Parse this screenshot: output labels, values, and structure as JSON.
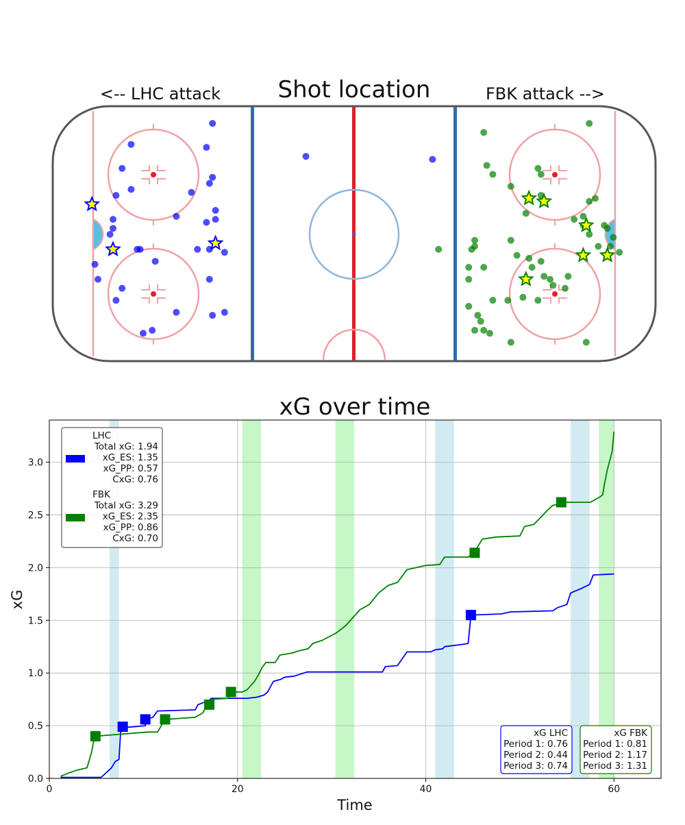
{
  "colors": {
    "lhc": "#0000ff",
    "fbk": "#008000",
    "pp_lhc_band": "#add8e6",
    "pp_fbk_band": "#90ee90",
    "goal_star_fill": "#ffff00",
    "rink_red": "#e0202a",
    "rink_blue": "#2a6fb0",
    "crease": "#5bc0de"
  },
  "shot_map": {
    "title": "Shot location",
    "left_label": "<-- LHC attack",
    "right_label": "FBK attack -->",
    "coordinate_system": "rink feet, x -100..100, y -42.5..42.5",
    "lhc_shots": [
      [
        -47,
        37
      ],
      [
        -74,
        30
      ],
      [
        -49,
        29
      ],
      [
        -77,
        22
      ],
      [
        -48,
        17
      ],
      [
        -54,
        14
      ],
      [
        -74,
        15
      ],
      [
        -59,
        6
      ],
      [
        -80,
        5
      ],
      [
        -49,
        4
      ],
      [
        -81,
        0
      ],
      [
        -71,
        -5
      ],
      [
        -72,
        -5
      ],
      [
        -48,
        -5
      ],
      [
        -52,
        -5
      ],
      [
        -86,
        -10
      ],
      [
        -66,
        -9
      ],
      [
        -85,
        -15
      ],
      [
        -77,
        -18
      ],
      [
        -43,
        -6
      ],
      [
        -79,
        -22
      ],
      [
        -59,
        -26
      ],
      [
        -67,
        -32
      ],
      [
        -43,
        -26
      ],
      [
        -47,
        -27
      ],
      [
        -70,
        -33
      ],
      [
        -48,
        -15
      ],
      [
        -46,
        5
      ],
      [
        -46,
        8
      ],
      [
        -79,
        13
      ],
      [
        -80,
        2
      ],
      [
        -47,
        19
      ],
      [
        -16,
        26
      ],
      [
        26,
        25
      ]
    ],
    "lhc_goals": [
      [
        -87,
        10
      ],
      [
        -80,
        -5
      ],
      [
        -46,
        -3
      ]
    ],
    "fbk_shots": [
      [
        28,
        -5
      ],
      [
        43,
        34
      ],
      [
        44,
        23
      ],
      [
        46,
        20
      ],
      [
        52,
        16
      ],
      [
        62,
        20
      ],
      [
        62,
        13
      ],
      [
        78,
        37
      ],
      [
        58,
        -8
      ],
      [
        80,
        12
      ],
      [
        78,
        11
      ],
      [
        76,
        6
      ],
      [
        76,
        3
      ],
      [
        83,
        3
      ],
      [
        84,
        2
      ],
      [
        85,
        -4
      ],
      [
        81,
        -4
      ],
      [
        39,
        -5
      ],
      [
        40,
        -2
      ],
      [
        40,
        -4
      ],
      [
        38,
        -11
      ],
      [
        38,
        -15
      ],
      [
        43,
        -11
      ],
      [
        59,
        -11
      ],
      [
        63,
        -14
      ],
      [
        65,
        -15
      ],
      [
        71,
        -14
      ],
      [
        70,
        -18
      ],
      [
        56,
        -21
      ],
      [
        61,
        -22
      ],
      [
        51,
        -22
      ],
      [
        62,
        -9
      ],
      [
        46,
        -22
      ],
      [
        38,
        -24
      ],
      [
        41,
        -27
      ],
      [
        42,
        -29
      ],
      [
        43,
        -32
      ],
      [
        45,
        -33
      ],
      [
        40,
        -32
      ],
      [
        52,
        -36
      ],
      [
        77,
        -36
      ],
      [
        57,
        7
      ],
      [
        73,
        5
      ],
      [
        88,
        -6
      ],
      [
        86,
        -1
      ],
      [
        52,
        -2
      ],
      [
        54,
        -7
      ],
      [
        66,
        -17
      ],
      [
        61,
        22
      ],
      [
        78,
        0
      ]
    ],
    "fbk_goals": [
      [
        58,
        12
      ],
      [
        63,
        11
      ],
      [
        77,
        3
      ],
      [
        76,
        -7
      ],
      [
        84,
        -7
      ],
      [
        57,
        -15
      ]
    ]
  },
  "chart_data": {
    "type": "line",
    "title": "xG over time",
    "xlabel": "Time",
    "ylabel": "xG",
    "xlim": [
      0,
      65
    ],
    "ylim": [
      0,
      3.4
    ],
    "xticks": [
      0,
      20,
      40,
      60
    ],
    "yticks": [
      0.0,
      0.5,
      1.0,
      1.5,
      2.0,
      2.5,
      3.0
    ],
    "grid": true,
    "legend_position": "top-left",
    "power_play_bands": [
      {
        "team": "LHC",
        "range": [
          6.4,
          7.4
        ]
      },
      {
        "team": "FBK",
        "range": [
          20.5,
          22.5
        ]
      },
      {
        "team": "FBK",
        "range": [
          30.4,
          32.4
        ]
      },
      {
        "team": "LHC",
        "range": [
          41.0,
          43.0
        ]
      },
      {
        "team": "LHC",
        "range": [
          55.4,
          57.4
        ]
      },
      {
        "team": "FBK",
        "range": [
          58.4,
          60.0
        ]
      }
    ],
    "series": [
      {
        "name": "LHC",
        "points": [
          [
            1.2,
            0.01
          ],
          [
            5.5,
            0.01
          ],
          [
            6.0,
            0.05
          ],
          [
            6.6,
            0.1
          ],
          [
            7.0,
            0.16
          ],
          [
            7.4,
            0.18
          ],
          [
            7.6,
            0.48
          ],
          [
            9.0,
            0.49
          ],
          [
            10.2,
            0.5
          ],
          [
            10.3,
            0.56
          ],
          [
            11.0,
            0.58
          ],
          [
            11.5,
            0.64
          ],
          [
            15.5,
            0.65
          ],
          [
            15.8,
            0.7
          ],
          [
            17.0,
            0.74
          ],
          [
            17.2,
            0.76
          ],
          [
            21.0,
            0.76
          ],
          [
            22.0,
            0.77
          ],
          [
            22.8,
            0.79
          ],
          [
            23.2,
            0.82
          ],
          [
            23.8,
            0.92
          ],
          [
            24.6,
            0.94
          ],
          [
            25.0,
            0.96
          ],
          [
            26.0,
            0.97
          ],
          [
            27.4,
            1.01
          ],
          [
            35.4,
            1.01
          ],
          [
            35.7,
            1.06
          ],
          [
            37.0,
            1.07
          ],
          [
            38.0,
            1.2
          ],
          [
            40.5,
            1.2
          ],
          [
            41.0,
            1.22
          ],
          [
            41.8,
            1.23
          ],
          [
            42.0,
            1.25
          ],
          [
            43.8,
            1.27
          ],
          [
            44.5,
            1.28
          ],
          [
            44.8,
            1.55
          ],
          [
            48.0,
            1.56
          ],
          [
            49.0,
            1.58
          ],
          [
            53.5,
            1.59
          ],
          [
            54.0,
            1.62
          ],
          [
            55.0,
            1.65
          ],
          [
            55.4,
            1.76
          ],
          [
            56.5,
            1.8
          ],
          [
            57.4,
            1.84
          ],
          [
            57.8,
            1.93
          ],
          [
            60.0,
            1.94
          ]
        ],
        "goal_markers": [
          [
            7.8,
            0.49
          ],
          [
            10.2,
            0.56
          ],
          [
            44.8,
            1.55
          ]
        ],
        "legend": {
          "name": "LHC",
          "total": "Total xG: 1.94",
          "es": "xG_ES: 1.35",
          "pp": "xG_PP: 0.57",
          "cxg": "CxG: 0.76"
        }
      },
      {
        "name": "FBK",
        "points": [
          [
            1.2,
            0.02
          ],
          [
            2.0,
            0.05
          ],
          [
            3.0,
            0.08
          ],
          [
            4.0,
            0.1
          ],
          [
            4.5,
            0.25
          ],
          [
            4.8,
            0.4
          ],
          [
            10.5,
            0.44
          ],
          [
            11.5,
            0.44
          ],
          [
            12.3,
            0.56
          ],
          [
            15.5,
            0.58
          ],
          [
            16.3,
            0.62
          ],
          [
            16.8,
            0.7
          ],
          [
            17.2,
            0.75
          ],
          [
            19.0,
            0.76
          ],
          [
            19.3,
            0.82
          ],
          [
            20.5,
            0.82
          ],
          [
            21.0,
            0.84
          ],
          [
            21.8,
            0.92
          ],
          [
            22.2,
            0.98
          ],
          [
            22.6,
            1.05
          ],
          [
            23.0,
            1.1
          ],
          [
            24.0,
            1.1
          ],
          [
            24.5,
            1.17
          ],
          [
            25.8,
            1.19
          ],
          [
            26.5,
            1.21
          ],
          [
            27.5,
            1.23
          ],
          [
            28.0,
            1.28
          ],
          [
            29.0,
            1.31
          ],
          [
            30.5,
            1.38
          ],
          [
            31.5,
            1.45
          ],
          [
            32.5,
            1.55
          ],
          [
            33.0,
            1.6
          ],
          [
            34.0,
            1.65
          ],
          [
            35.0,
            1.76
          ],
          [
            36.0,
            1.83
          ],
          [
            37.0,
            1.86
          ],
          [
            38.0,
            1.98
          ],
          [
            40.0,
            2.02
          ],
          [
            41.5,
            2.03
          ],
          [
            42.0,
            2.1
          ],
          [
            44.5,
            2.1
          ],
          [
            45.2,
            2.15
          ],
          [
            46.0,
            2.27
          ],
          [
            47.5,
            2.29
          ],
          [
            50.0,
            2.3
          ],
          [
            50.5,
            2.39
          ],
          [
            51.5,
            2.41
          ],
          [
            53.0,
            2.55
          ],
          [
            53.5,
            2.59
          ],
          [
            54.5,
            2.61
          ],
          [
            55.0,
            2.62
          ],
          [
            57.5,
            2.62
          ],
          [
            58.5,
            2.67
          ],
          [
            58.8,
            2.69
          ],
          [
            59.0,
            2.8
          ],
          [
            59.3,
            2.93
          ],
          [
            59.8,
            3.1
          ],
          [
            60.0,
            3.29
          ]
        ],
        "goal_markers": [
          [
            4.9,
            0.4
          ],
          [
            12.3,
            0.56
          ],
          [
            17.0,
            0.7
          ],
          [
            19.3,
            0.82
          ],
          [
            45.2,
            2.14
          ],
          [
            54.4,
            2.62
          ]
        ],
        "legend": {
          "name": "FBK",
          "total": "Total xG: 3.29",
          "es": "xG_ES: 2.35",
          "pp": "xG_PP: 0.86",
          "cxg": "CxG: 0.70"
        }
      }
    ],
    "period_boxes": {
      "lhc": {
        "title": "xG LHC",
        "p1": "Period 1: 0.76",
        "p2": "Period 2: 0.44",
        "p3": "Period 3: 0.74"
      },
      "fbk": {
        "title": "xG FBK",
        "p1": "Period 1: 0.81",
        "p2": "Period 2: 1.17",
        "p3": "Period 3: 1.31"
      }
    }
  }
}
